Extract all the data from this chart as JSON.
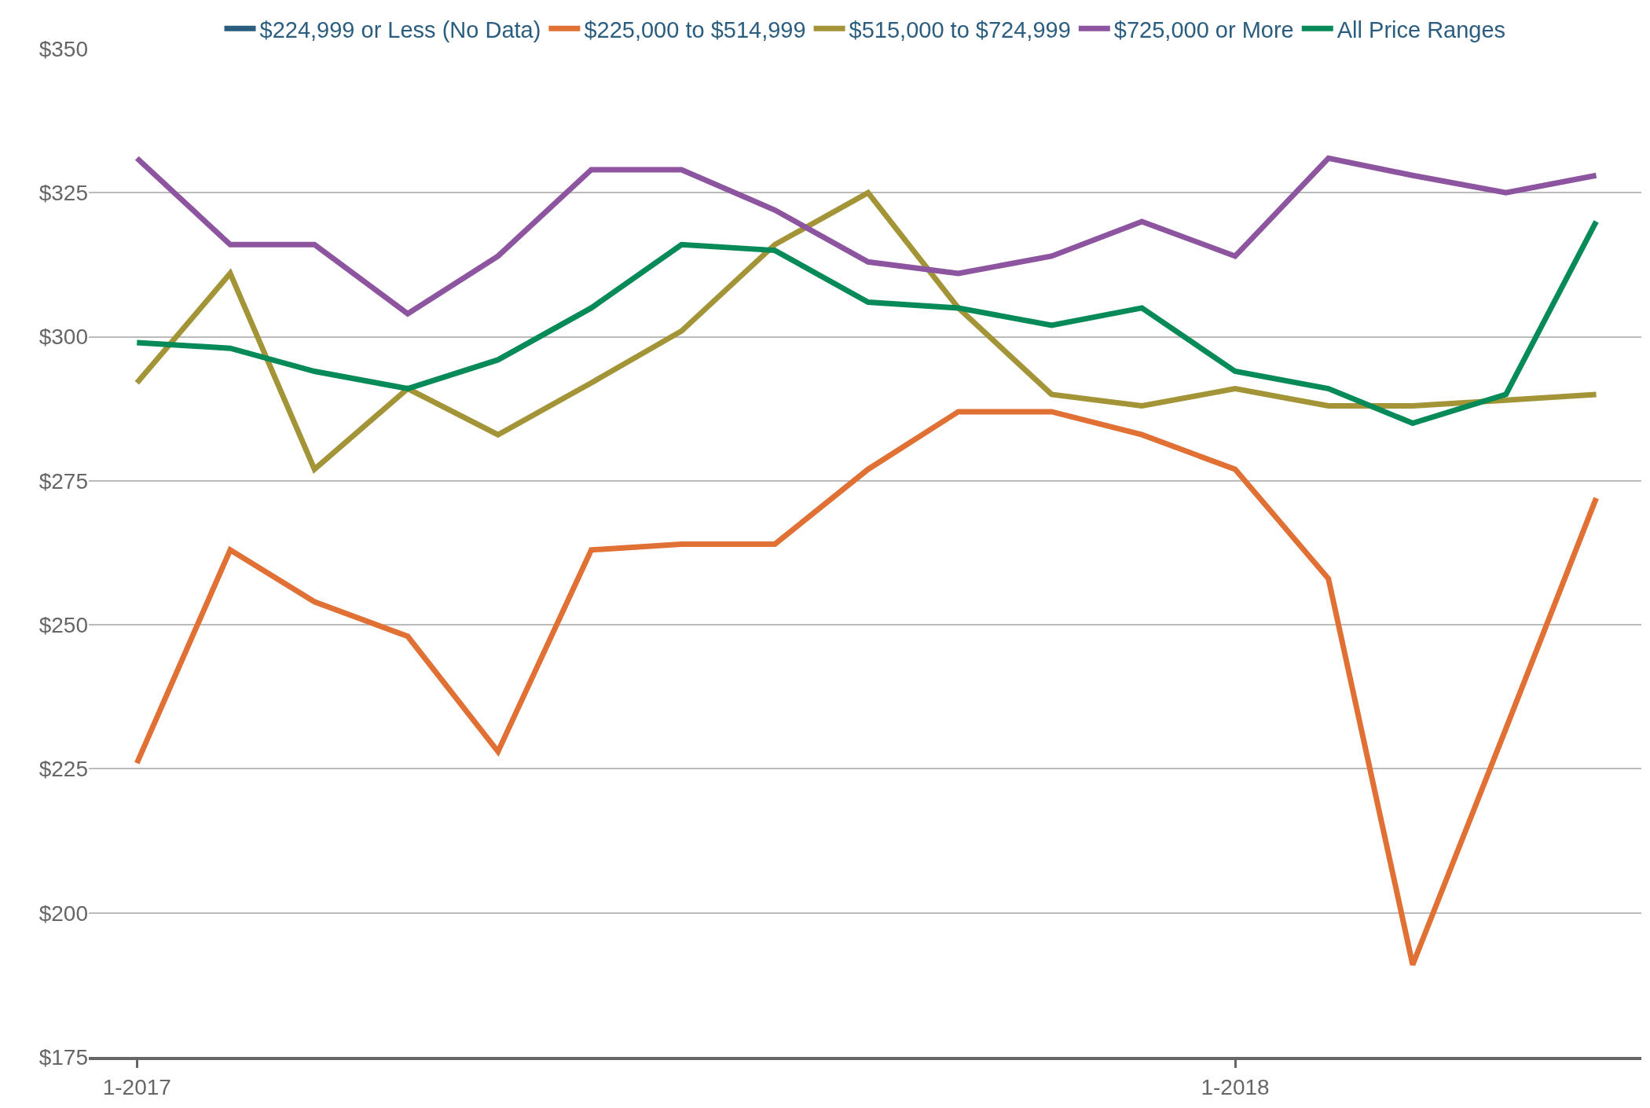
{
  "chart_data": {
    "type": "line",
    "x": [
      "2017-01",
      "2017-02",
      "2017-03",
      "2017-04",
      "2017-05",
      "2017-06",
      "2017-07",
      "2017-08",
      "2017-09",
      "2017-10",
      "2017-11",
      "2017-12",
      "2018-01",
      "2018-02",
      "2018-03",
      "2018-04",
      "2018-05"
    ],
    "series": [
      {
        "name": "$224,999 or Less (No Data)",
        "color": "#2b5d7e",
        "values": [
          null,
          null,
          null,
          null,
          null,
          null,
          null,
          null,
          null,
          null,
          null,
          null,
          null,
          null,
          null,
          null,
          null
        ]
      },
      {
        "name": "$225,000 to $514,999",
        "color": "#e07034",
        "values": [
          226,
          263,
          254,
          248,
          228,
          263,
          264,
          264,
          277,
          287,
          287,
          283,
          277,
          258,
          191,
          232,
          272
        ]
      },
      {
        "name": "$515,000 to $724,999",
        "color": "#a39437",
        "values": [
          292,
          311,
          277,
          291,
          283,
          292,
          301,
          316,
          325,
          305,
          290,
          288,
          291,
          288,
          288,
          289,
          290
        ]
      },
      {
        "name": "$725,000 or More",
        "color": "#8d55a0",
        "values": [
          331,
          316,
          316,
          304,
          314,
          329,
          329,
          322,
          313,
          311,
          314,
          320,
          314,
          331,
          328,
          325,
          328
        ]
      },
      {
        "name": "All Price Ranges",
        "color": "#068a57",
        "values": [
          299,
          298,
          294,
          291,
          296,
          305,
          316,
          315,
          306,
          305,
          302,
          305,
          294,
          291,
          285,
          290,
          320
        ]
      }
    ],
    "xlim": [
      "2016-12-16",
      "2018-05-16"
    ],
    "xticks": [
      {
        "value": "2017-01",
        "label": "1-2017"
      },
      {
        "value": "2018-01",
        "label": "1-2018"
      }
    ],
    "ylim": [
      175,
      350
    ],
    "yticks": [
      {
        "value": 175,
        "label": "$175"
      },
      {
        "value": 200,
        "label": "$200"
      },
      {
        "value": 225,
        "label": "$225"
      },
      {
        "value": 250,
        "label": "$250"
      },
      {
        "value": 275,
        "label": "$275"
      },
      {
        "value": 300,
        "label": "$300"
      },
      {
        "value": 325,
        "label": "$325"
      },
      {
        "value": 350,
        "label": "$350"
      }
    ],
    "grid": "y",
    "legend": "top",
    "marker": "none",
    "line_style": "solid"
  }
}
